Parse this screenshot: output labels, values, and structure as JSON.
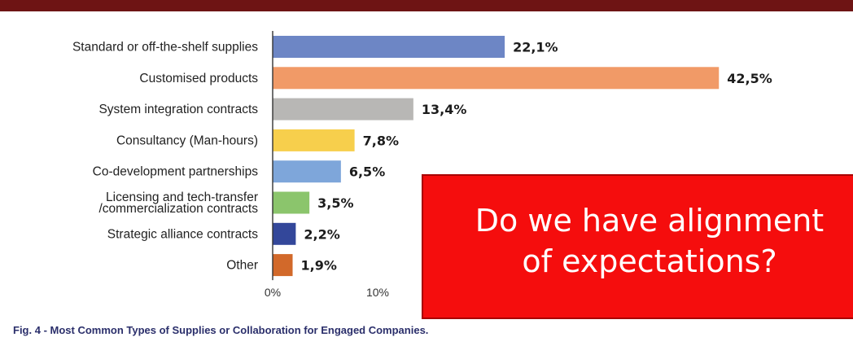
{
  "chart_data": {
    "type": "bar",
    "orientation": "horizontal",
    "categories": [
      [
        "Standard or off-the-shelf supplies"
      ],
      [
        "Customised products"
      ],
      [
        "System integration contracts"
      ],
      [
        "Consultancy (Man-hours)"
      ],
      [
        "Co-development partnerships"
      ],
      [
        "Licensing and tech-transfer",
        "/commercialization contracts"
      ],
      [
        "Strategic alliance contracts"
      ],
      [
        "Other"
      ]
    ],
    "values": [
      22.1,
      42.5,
      13.4,
      7.8,
      6.5,
      3.5,
      2.2,
      1.9
    ],
    "value_labels": [
      "22,1%",
      "42,5%",
      "13,4%",
      "7,8%",
      "6,5%",
      "3,5%",
      "2,2%",
      "1,9%"
    ],
    "colors": [
      "#6d86c5",
      "#f19a67",
      "#b8b7b5",
      "#f7cf4c",
      "#7ea6da",
      "#8bc56c",
      "#33479a",
      "#d2692a"
    ],
    "x_ticks": [
      "0%",
      "10%"
    ],
    "xlim": [
      0,
      50
    ],
    "grid": false
  },
  "overlay": {
    "line1": "Do we have alignment",
    "line2": "of expectations?"
  },
  "caption": {
    "prefix": "Fig. 4",
    "text": " - Most Common Types of Supplies or Collaboration for Engaged Companies."
  },
  "colors": {
    "top_bar": "#6e1414",
    "overlay": "#f50d0d",
    "caption": "#2b2f6b"
  }
}
